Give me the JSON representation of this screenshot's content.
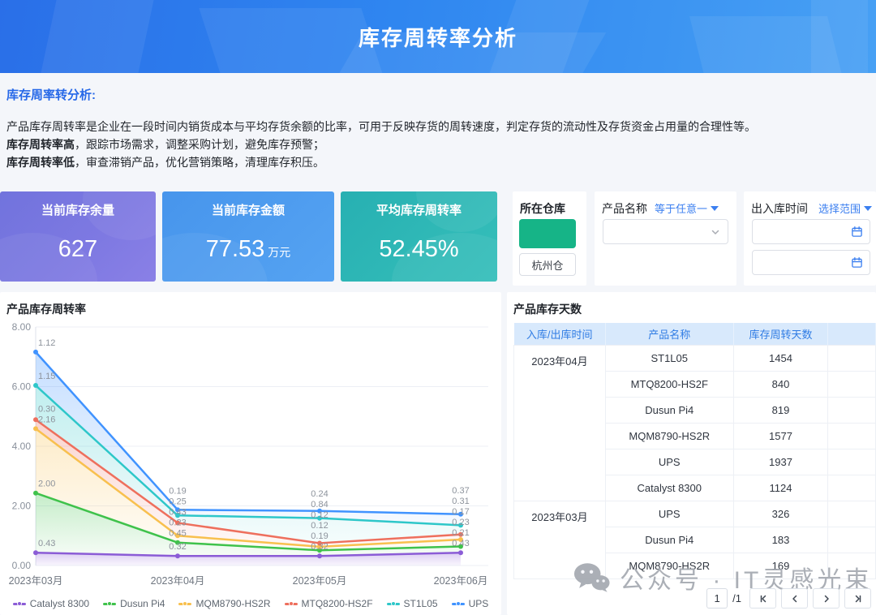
{
  "header": {
    "title": "库存周转率分析"
  },
  "intro": {
    "heading": "库存周率转分析:",
    "line1": "产品库存周转率是企业在一段时间内销货成本与平均存货余额的比率，可用于反映存货的周转速度，判定存货的流动性及存货资金占用量的合理性等。",
    "line2_bold": "库存周转率高",
    "line2_rest": "，跟踪市场需求，调整采购计划，避免库存预警；",
    "line3_bold": "库存周转率低",
    "line3_rest": "，审查滞销产品，优化营销策略，清理库存积压。"
  },
  "kpis": {
    "inventory_qty": {
      "label": "当前库存余量",
      "value": "627"
    },
    "inventory_amount": {
      "label": "当前库存金额",
      "value": "77.53",
      "unit": "万元"
    },
    "turnover_rate": {
      "label": "平均库存周转率",
      "value": "52.45%"
    }
  },
  "filters": {
    "warehouse": {
      "label": "所在仓库",
      "selected": "杭州仓",
      "block_color": "#16b487"
    },
    "product": {
      "label": "产品名称",
      "operator": "等于任意一",
      "value": ""
    },
    "time": {
      "label": "出入库时间",
      "operator": "选择范围",
      "start": "",
      "end": ""
    }
  },
  "chart_data": {
    "type": "area",
    "stacked": true,
    "title": "产品库存周转率",
    "x": [
      "2023年03月",
      "2023年04月",
      "2023年05月",
      "2023年06月"
    ],
    "ylim": [
      0,
      8
    ],
    "yticks": [
      0,
      2,
      4,
      6,
      8
    ],
    "grid": true,
    "legend_position": "bottom",
    "series": [
      {
        "name": "Catalyst 8300",
        "color": "#8b5cd6",
        "values": [
          0.43,
          0.32,
          0.32,
          0.43
        ]
      },
      {
        "name": "Dusun Pi4",
        "color": "#3fc24b",
        "values": [
          2.0,
          0.45,
          0.19,
          0.21
        ]
      },
      {
        "name": "MQM8790-HS2R",
        "color": "#f8c04e",
        "values": [
          2.16,
          0.23,
          0.12,
          0.23
        ]
      },
      {
        "name": "MTQ8200-HS2F",
        "color": "#ee6f5d",
        "values": [
          0.3,
          0.43,
          0.12,
          0.17
        ]
      },
      {
        "name": "ST1L05",
        "color": "#2ec7c9",
        "values": [
          1.15,
          0.25,
          0.84,
          0.31
        ]
      },
      {
        "name": "UPS",
        "color": "#4093ff",
        "values": [
          1.12,
          0.19,
          0.24,
          0.37
        ]
      }
    ]
  },
  "table": {
    "title": "产品库存天数",
    "columns": [
      "入库/出库时间",
      "产品名称",
      "库存周转天数",
      ""
    ],
    "groups": [
      {
        "period": "2023年04月",
        "rows": [
          {
            "product": "ST1L05",
            "days": "1454"
          },
          {
            "product": "MTQ8200-HS2F",
            "days": "840"
          },
          {
            "product": "Dusun Pi4",
            "days": "819"
          },
          {
            "product": "MQM8790-HS2R",
            "days": "1577"
          },
          {
            "product": "UPS",
            "days": "1937"
          },
          {
            "product": "Catalyst 8300",
            "days": "1124"
          }
        ]
      },
      {
        "period": "2023年03月",
        "rows": [
          {
            "product": "UPS",
            "days": "326"
          },
          {
            "product": "Dusun Pi4",
            "days": "183"
          },
          {
            "product": "MQM8790-HS2R",
            "days": "169"
          }
        ]
      }
    ]
  },
  "pagination": {
    "page": "1",
    "total": "/1"
  },
  "watermark": {
    "text": "公众号 · IT灵感光束"
  }
}
